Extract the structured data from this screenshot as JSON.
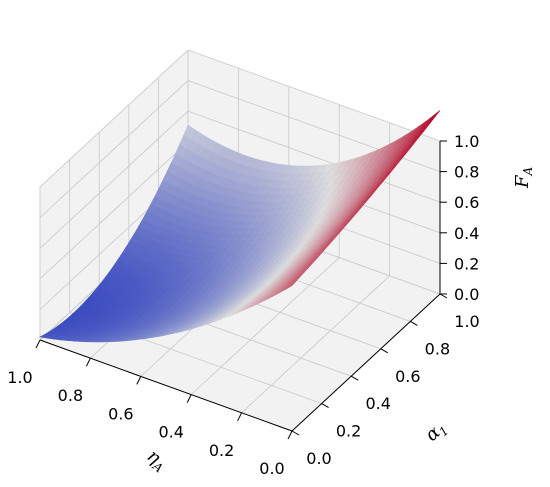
{
  "chart_data": {
    "type": "surface",
    "title": "",
    "x": {
      "label": "η",
      "label_sub": "A",
      "range": [
        0,
        1
      ],
      "ticks": [
        "0.0",
        "0.2",
        "0.4",
        "0.6",
        "0.8",
        "1.0"
      ]
    },
    "y": {
      "label": "α",
      "label_sub": "1",
      "range": [
        0,
        1
      ],
      "ticks": [
        "0.0",
        "0.2",
        "0.4",
        "0.6",
        "0.8",
        "1.0"
      ]
    },
    "z": {
      "label": "F",
      "label_sub": "A",
      "range": [
        0,
        1
      ],
      "ticks": [
        "0.0",
        "0.2",
        "0.4",
        "0.6",
        "0.8",
        "1.0"
      ]
    },
    "surface": {
      "x_values": [
        0.0,
        0.5,
        1.0
      ],
      "y_values": [
        0.0,
        0.5,
        1.0
      ],
      "z_values": [
        [
          0.95,
          1.05,
          1.2
        ],
        [
          0.33,
          0.29,
          0.54
        ],
        [
          0.02,
          0.04,
          0.51
        ]
      ]
    },
    "colormap": "coolwarm",
    "colors": {
      "low": "#3b4cc0",
      "mid": "#dddddd",
      "high": "#b40426",
      "pane": "#f2f2f2",
      "grid": "#cccccc"
    },
    "grid": true
  }
}
